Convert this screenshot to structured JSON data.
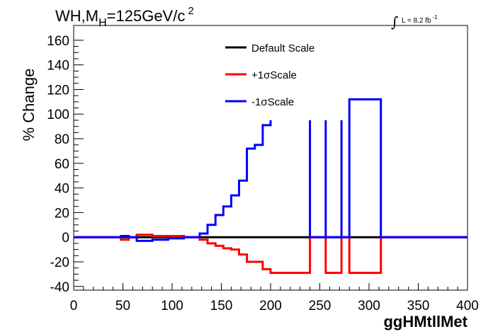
{
  "chart_data": {
    "type": "line",
    "title": "WH,M",
    "title_subscript": "H",
    "title_rest": "=125GeV/c",
    "title_superscript": "2",
    "lumi_label": "L = 8.2 fb",
    "lumi_superscript": "-1",
    "xlabel": "ggHMtllMet",
    "ylabel": "% Change",
    "xlim": [
      0,
      400
    ],
    "ylim": [
      -43,
      172
    ],
    "x_ticks": [
      0,
      50,
      100,
      150,
      200,
      250,
      300,
      350,
      400
    ],
    "y_ticks": [
      -40,
      -20,
      0,
      20,
      40,
      60,
      80,
      100,
      120,
      140,
      160
    ],
    "grid": false,
    "legend_position": "top-center",
    "series": [
      {
        "name": "Default Scale",
        "color": "#000000",
        "step_points": [
          [
            0,
            0
          ],
          [
            400,
            0
          ]
        ]
      },
      {
        "name": "+1σScale",
        "color": "#ff0000",
        "step_points": [
          [
            0,
            0
          ],
          [
            48,
            0
          ],
          [
            48,
            -2
          ],
          [
            56,
            -2
          ],
          [
            56,
            0
          ],
          [
            64,
            0
          ],
          [
            64,
            2
          ],
          [
            80,
            2
          ],
          [
            80,
            1
          ],
          [
            112,
            1
          ],
          [
            112,
            0
          ],
          [
            128,
            0
          ],
          [
            128,
            -2
          ],
          [
            136,
            -2
          ],
          [
            136,
            -5
          ],
          [
            144,
            -5
          ],
          [
            144,
            -7
          ],
          [
            152,
            -7
          ],
          [
            152,
            -9
          ],
          [
            160,
            -9
          ],
          [
            160,
            -10
          ],
          [
            168,
            -10
          ],
          [
            168,
            -14
          ],
          [
            176,
            -14
          ],
          [
            176,
            -20
          ],
          [
            184,
            -20
          ],
          [
            184,
            -20
          ],
          [
            192,
            -20
          ],
          [
            192,
            -26
          ],
          [
            200,
            -26
          ],
          [
            200,
            -29
          ],
          [
            240,
            -29
          ],
          [
            240,
            0
          ],
          [
            256,
            0
          ],
          [
            256,
            -29
          ],
          [
            272,
            -29
          ],
          [
            272,
            0
          ],
          [
            280,
            0
          ],
          [
            280,
            -29
          ],
          [
            312,
            -29
          ],
          [
            312,
            0
          ],
          [
            400,
            0
          ]
        ]
      },
      {
        "name": "-1σScale",
        "color": "#0000ff",
        "step_points": [
          [
            0,
            0
          ],
          [
            48,
            0
          ],
          [
            48,
            1
          ],
          [
            56,
            1
          ],
          [
            56,
            0
          ],
          [
            64,
            0
          ],
          [
            64,
            -3
          ],
          [
            80,
            -3
          ],
          [
            80,
            -2
          ],
          [
            96,
            -2
          ],
          [
            96,
            -1
          ],
          [
            112,
            -1
          ],
          [
            112,
            0
          ],
          [
            128,
            0
          ],
          [
            128,
            3
          ],
          [
            136,
            3
          ],
          [
            136,
            10
          ],
          [
            144,
            10
          ],
          [
            144,
            18
          ],
          [
            152,
            18
          ],
          [
            152,
            25
          ],
          [
            160,
            25
          ],
          [
            160,
            34
          ],
          [
            168,
            34
          ],
          [
            168,
            46
          ],
          [
            176,
            46
          ],
          [
            176,
            72
          ],
          [
            184,
            72
          ],
          [
            184,
            75
          ],
          [
            192,
            75
          ],
          [
            192,
            91
          ],
          [
            200,
            91
          ],
          [
            200,
            95
          ]
        ],
        "extra_segments": [
          [
            [
              240,
              95
            ],
            [
              240,
              0
            ],
            [
              256,
              0
            ],
            [
              256,
              95
            ],
            [
              256,
              0
            ],
            [
              272,
              0
            ],
            [
              272,
              95
            ],
            [
              272,
              0
            ],
            [
              280,
              0
            ],
            [
              280,
              112
            ],
            [
              312,
              112
            ],
            [
              312,
              0
            ],
            [
              400,
              0
            ]
          ]
        ]
      }
    ]
  }
}
